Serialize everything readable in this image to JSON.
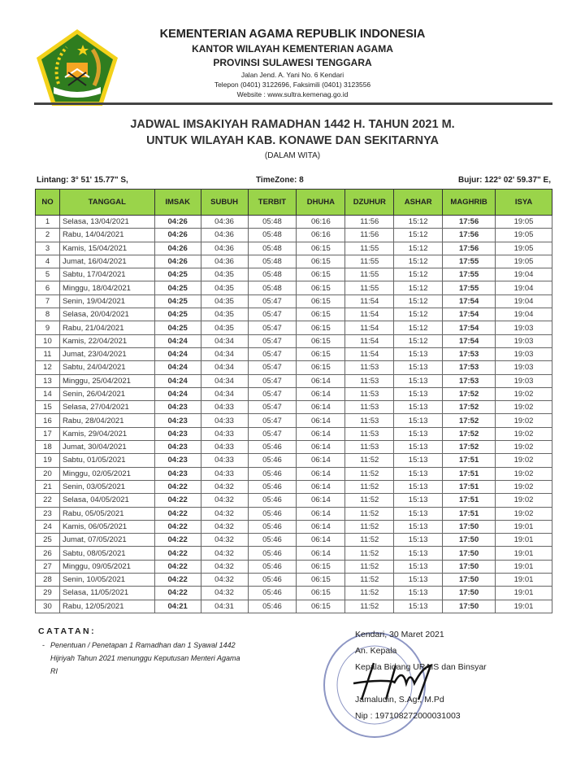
{
  "header": {
    "org": "KEMENTERIAN AGAMA REPUBLIK INDONESIA",
    "office": "KANTOR WILAYAH KEMENTERIAN AGAMA",
    "province": "PROVINSI SULAWESI TENGGARA",
    "address": "Jalan Jend. A. Yani No. 6 Kendari",
    "phone": "Telepon (0401) 3122696, Faksimili (0401) 3123556",
    "website": "Website : www.sultra.kemenag.go.id",
    "logo_text": "IKHLAS BERAMAL"
  },
  "title": {
    "line1": "JADWAL IMSAKIYAH RAMADHAN 1442 H. TAHUN 2021 M.",
    "line2": "UNTUK WILAYAH KAB. KONAWE DAN SEKITARNYA",
    "sub": "(DALAM WITA)"
  },
  "meta": {
    "lintang": "Lintang: 3° 51' 15.77\" S,",
    "timezone": "TimeZone: 8",
    "bujur": "Bujur: 122° 02' 59.37\" E,"
  },
  "colors": {
    "header_bg": "#9ad44a"
  },
  "table": {
    "columns": [
      "NO",
      "TANGGAL",
      "IMSAK",
      "SUBUH",
      "TERBIT",
      "DHUHA",
      "DZUHUR",
      "ASHAR",
      "MAGHRIB",
      "ISYA"
    ],
    "rows": [
      [
        "1",
        "Selasa, 13/04/2021",
        "04:26",
        "04:36",
        "05:48",
        "06:16",
        "11:56",
        "15:12",
        "17:56",
        "19:05"
      ],
      [
        "2",
        "Rabu, 14/04/2021",
        "04:26",
        "04:36",
        "05:48",
        "06:16",
        "11:56",
        "15:12",
        "17:56",
        "19:05"
      ],
      [
        "3",
        "Kamis, 15/04/2021",
        "04:26",
        "04:36",
        "05:48",
        "06:15",
        "11:55",
        "15:12",
        "17:56",
        "19:05"
      ],
      [
        "4",
        "Jumat, 16/04/2021",
        "04:26",
        "04:36",
        "05:48",
        "06:15",
        "11:55",
        "15:12",
        "17:55",
        "19:05"
      ],
      [
        "5",
        "Sabtu, 17/04/2021",
        "04:25",
        "04:35",
        "05:48",
        "06:15",
        "11:55",
        "15:12",
        "17:55",
        "19:04"
      ],
      [
        "6",
        "Minggu, 18/04/2021",
        "04:25",
        "04:35",
        "05:48",
        "06:15",
        "11:55",
        "15:12",
        "17:55",
        "19:04"
      ],
      [
        "7",
        "Senin, 19/04/2021",
        "04:25",
        "04:35",
        "05:47",
        "06:15",
        "11:54",
        "15:12",
        "17:54",
        "19:04"
      ],
      [
        "8",
        "Selasa, 20/04/2021",
        "04:25",
        "04:35",
        "05:47",
        "06:15",
        "11:54",
        "15:12",
        "17:54",
        "19:04"
      ],
      [
        "9",
        "Rabu, 21/04/2021",
        "04:25",
        "04:35",
        "05:47",
        "06:15",
        "11:54",
        "15:12",
        "17:54",
        "19:03"
      ],
      [
        "10",
        "Kamis, 22/04/2021",
        "04:24",
        "04:34",
        "05:47",
        "06:15",
        "11:54",
        "15:12",
        "17:54",
        "19:03"
      ],
      [
        "11",
        "Jumat, 23/04/2021",
        "04:24",
        "04:34",
        "05:47",
        "06:15",
        "11:54",
        "15:13",
        "17:53",
        "19:03"
      ],
      [
        "12",
        "Sabtu, 24/04/2021",
        "04:24",
        "04:34",
        "05:47",
        "06:15",
        "11:53",
        "15:13",
        "17:53",
        "19:03"
      ],
      [
        "13",
        "Minggu, 25/04/2021",
        "04:24",
        "04:34",
        "05:47",
        "06:14",
        "11:53",
        "15:13",
        "17:53",
        "19:03"
      ],
      [
        "14",
        "Senin, 26/04/2021",
        "04:24",
        "04:34",
        "05:47",
        "06:14",
        "11:53",
        "15:13",
        "17:52",
        "19:02"
      ],
      [
        "15",
        "Selasa, 27/04/2021",
        "04:23",
        "04:33",
        "05:47",
        "06:14",
        "11:53",
        "15:13",
        "17:52",
        "19:02"
      ],
      [
        "16",
        "Rabu, 28/04/2021",
        "04:23",
        "04:33",
        "05:47",
        "06:14",
        "11:53",
        "15:13",
        "17:52",
        "19:02"
      ],
      [
        "17",
        "Kamis, 29/04/2021",
        "04:23",
        "04:33",
        "05:47",
        "06:14",
        "11:53",
        "15:13",
        "17:52",
        "19:02"
      ],
      [
        "18",
        "Jumat, 30/04/2021",
        "04:23",
        "04:33",
        "05:46",
        "06:14",
        "11:53",
        "15:13",
        "17:52",
        "19:02"
      ],
      [
        "19",
        "Sabtu, 01/05/2021",
        "04:23",
        "04:33",
        "05:46",
        "06:14",
        "11:52",
        "15:13",
        "17:51",
        "19:02"
      ],
      [
        "20",
        "Minggu, 02/05/2021",
        "04:23",
        "04:33",
        "05:46",
        "06:14",
        "11:52",
        "15:13",
        "17:51",
        "19:02"
      ],
      [
        "21",
        "Senin, 03/05/2021",
        "04:22",
        "04:32",
        "05:46",
        "06:14",
        "11:52",
        "15:13",
        "17:51",
        "19:02"
      ],
      [
        "22",
        "Selasa, 04/05/2021",
        "04:22",
        "04:32",
        "05:46",
        "06:14",
        "11:52",
        "15:13",
        "17:51",
        "19:02"
      ],
      [
        "23",
        "Rabu, 05/05/2021",
        "04:22",
        "04:32",
        "05:46",
        "06:14",
        "11:52",
        "15:13",
        "17:51",
        "19:02"
      ],
      [
        "24",
        "Kamis, 06/05/2021",
        "04:22",
        "04:32",
        "05:46",
        "06:14",
        "11:52",
        "15:13",
        "17:50",
        "19:01"
      ],
      [
        "25",
        "Jumat, 07/05/2021",
        "04:22",
        "04:32",
        "05:46",
        "06:14",
        "11:52",
        "15:13",
        "17:50",
        "19:01"
      ],
      [
        "26",
        "Sabtu, 08/05/2021",
        "04:22",
        "04:32",
        "05:46",
        "06:14",
        "11:52",
        "15:13",
        "17:50",
        "19:01"
      ],
      [
        "27",
        "Minggu, 09/05/2021",
        "04:22",
        "04:32",
        "05:46",
        "06:15",
        "11:52",
        "15:13",
        "17:50",
        "19:01"
      ],
      [
        "28",
        "Senin, 10/05/2021",
        "04:22",
        "04:32",
        "05:46",
        "06:15",
        "11:52",
        "15:13",
        "17:50",
        "19:01"
      ],
      [
        "29",
        "Selasa, 11/05/2021",
        "04:22",
        "04:32",
        "05:46",
        "06:15",
        "11:52",
        "15:13",
        "17:50",
        "19:01"
      ],
      [
        "30",
        "Rabu, 12/05/2021",
        "04:21",
        "04:31",
        "05:46",
        "06:15",
        "11:52",
        "15:13",
        "17:50",
        "19:01"
      ]
    ]
  },
  "notes": {
    "heading": "CATATAN:",
    "text": "Penentuan / Penetapan 1 Ramadhan dan 1 Syawal 1442 Hijriyah Tahun 2021 menunggu Keputusan Menteri Agama RI"
  },
  "signature": {
    "place_date": "Kendari, 30 Maret 2021",
    "an": "An. Kepala",
    "position": "Kepala Bidang URAIS dan Binsyar",
    "name": "Jamaludin, S.Ag., M.Pd",
    "nip": "Nip : 197108272000031003",
    "stamp_text": "KEMENTERIAN AGAMA REPUBLIK INDONESIA"
  }
}
